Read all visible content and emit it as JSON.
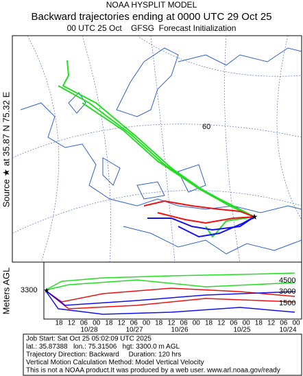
{
  "header": {
    "model": "NOAA HYSPLIT MODEL",
    "title": "Backward trajectories ending at 0000 UTC 29 Oct 25",
    "subtitle": "00 UTC 25 Oct    GFSG  Forecast Initialization"
  },
  "source_label": "Source ★ at 35.87 N 75.32 E",
  "map": {
    "grid_label": "60"
  },
  "height_panel": {
    "axis_label": "Meters AGL",
    "start_height": "3300",
    "ticks": [
      "4500",
      "3000",
      "1500"
    ],
    "time_labels": [
      "18",
      "12",
      "06",
      "00",
      "18",
      "12",
      "06",
      "00",
      "18",
      "12",
      "06",
      "00",
      "18",
      "12",
      "06",
      "00",
      "18",
      "12",
      "06",
      "00"
    ],
    "dates": [
      "10/28",
      "10/27",
      "10/26",
      "10/25",
      "10/24"
    ]
  },
  "footer": {
    "lines": [
      "Job Start: Sat Oct 25 05:02:09 UTC 2025",
      "lat.: 35.87388   lon.: 75.31506   hgt: 3300.0 m AGL",
      "Trajectory Direction: Backward     Duration: 120 hrs",
      "Vertical Motion Calculation Method: Model Vertical Velocity",
      "This is not a NOAA product.It was produced by a web user. www.arl.noaa.gov/ready"
    ]
  }
}
